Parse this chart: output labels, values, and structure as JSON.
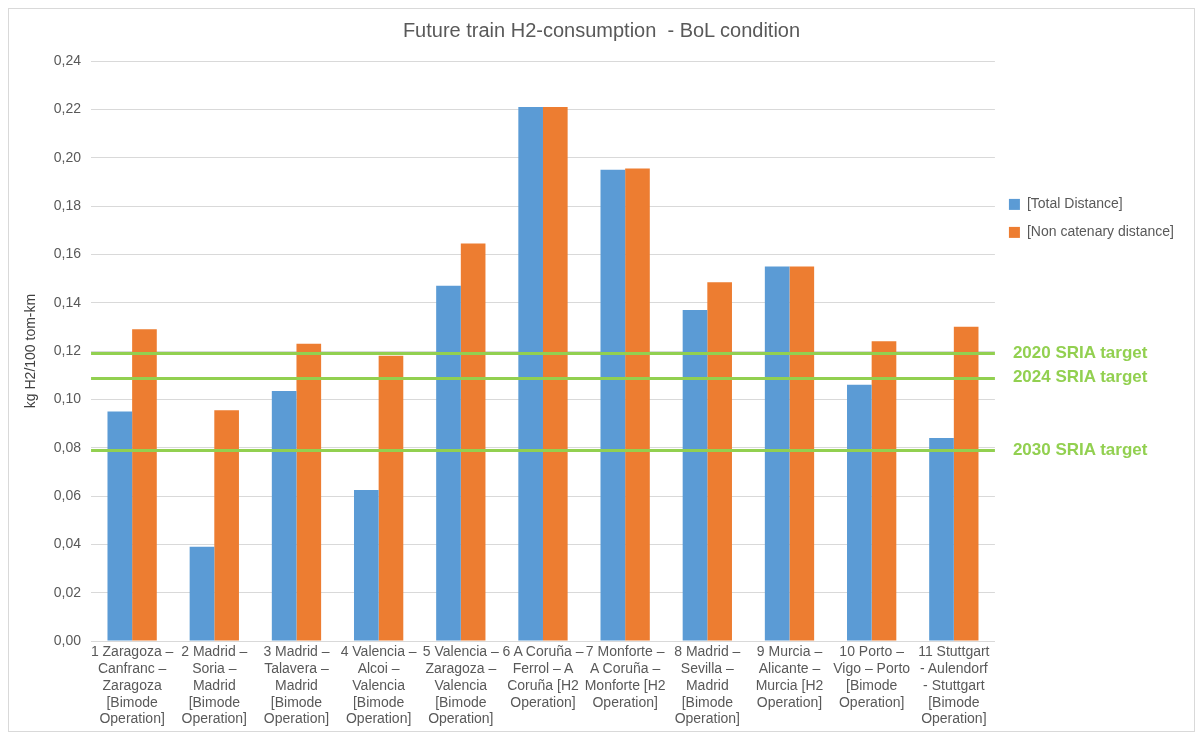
{
  "chart_data": {
    "type": "bar",
    "title": "Future train H2-consumption  - BoL condition",
    "ylabel": "kg H2/100 tom-km",
    "categories": [
      "1  Zaragoza – Canfranc – Zaragoza [Bimode Operation]",
      "2  Madrid – Soria – Madrid [Bimode Operation]",
      "3  Madrid – Talavera – Madrid [Bimode Operation]",
      "4  Valencia – Alcoi – Valencia [Bimode Operation]",
      "5  Valencia – Zaragoza – Valencia [Bimode Operation]",
      "6  A Coruña – Ferrol – A Coruña [H2 Operation]",
      "7  Monforte – A Coruña – Monforte [H2 Operation]",
      "8  Madrid – Sevilla – Madrid [Bimode Operation]",
      "9  Murcia – Alicante – Murcia [H2 Operation]",
      "10 Porto – Vigo – Porto [Bimode Operation]",
      "11 Stuttgart - Aulendorf - Stuttgart [Bimode Operation]"
    ],
    "series": [
      {
        "name": "[Total Distance]",
        "color": "#5b9bd5",
        "values": [
          0.095,
          0.039,
          0.1035,
          0.0625,
          0.147,
          0.221,
          0.195,
          0.137,
          0.155,
          0.106,
          0.084
        ]
      },
      {
        "name": "[Non catenary distance]",
        "color": "#ed7d31",
        "values": [
          0.129,
          0.0955,
          0.123,
          0.118,
          0.1645,
          0.221,
          0.1955,
          0.1485,
          0.155,
          0.124,
          0.13
        ]
      }
    ],
    "ylim": [
      0,
      0.24
    ],
    "yticks": [
      {
        "value": 0,
        "label": "0,00"
      },
      {
        "value": 0.02,
        "label": "0,02"
      },
      {
        "value": 0.04,
        "label": "0,04"
      },
      {
        "value": 0.06,
        "label": "0,06"
      },
      {
        "value": 0.08,
        "label": "0,08"
      },
      {
        "value": 0.1,
        "label": "0,10"
      },
      {
        "value": 0.12,
        "label": "0,12"
      },
      {
        "value": 0.14,
        "label": "0,14"
      },
      {
        "value": 0.16,
        "label": "0,16"
      },
      {
        "value": 0.18,
        "label": "0,18"
      },
      {
        "value": 0.2,
        "label": "0,20"
      },
      {
        "value": 0.22,
        "label": "0,22"
      },
      {
        "value": 0.24,
        "label": "0,24"
      }
    ],
    "grid": "y",
    "legend": "right",
    "ref_lines": [
      {
        "axis": "y",
        "value": 0.119,
        "label": "2020 SRIA target",
        "color": "#92d050"
      },
      {
        "axis": "y",
        "value": 0.109,
        "label": "2024 SRIA target",
        "color": "#92d050"
      },
      {
        "axis": "y",
        "value": 0.079,
        "label": "2030 SRIA target",
        "color": "#92d050"
      }
    ]
  }
}
